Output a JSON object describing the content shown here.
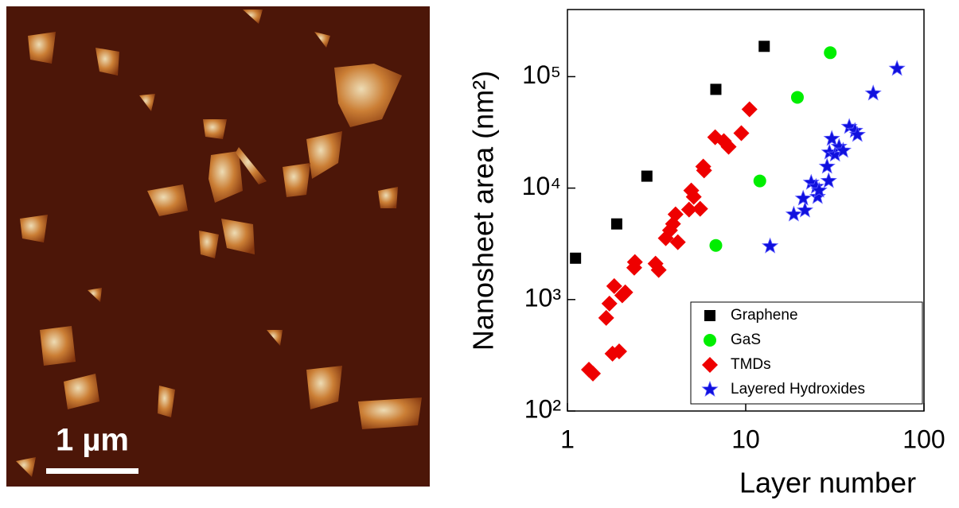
{
  "image": {
    "scale_bar_label": "1 µm"
  },
  "chart_data": {
    "type": "scatter",
    "xlabel": "Layer number",
    "ylabel": "Nanosheet area (nm²)",
    "xscale": "log",
    "yscale": "log",
    "xlim": [
      1,
      100
    ],
    "ylim": [
      100,
      400000
    ],
    "xticks": [
      1,
      10,
      100
    ],
    "yticks": [
      {
        "value": 100,
        "label": "10²"
      },
      {
        "value": 1000,
        "label": "10³"
      },
      {
        "value": 10000,
        "label": "10⁴"
      },
      {
        "value": 100000,
        "label": "10⁵"
      }
    ],
    "legend": "lower right",
    "series": [
      {
        "name": "Graphene",
        "color": "#000000",
        "marker": "square",
        "x": [
          1.11,
          1.89,
          2.79,
          6.8,
          12.7
        ],
        "values": [
          2350,
          4770,
          12800,
          76900,
          187000
        ]
      },
      {
        "name": "GaS",
        "color": "#00ee00",
        "marker": "circle",
        "x": [
          6.8,
          12.0,
          19.5,
          29.8
        ],
        "values": [
          3060,
          11600,
          65200,
          164000
        ]
      },
      {
        "name": "TMDs",
        "color": "#ee0000",
        "marker": "diamond",
        "x": [
          1.32,
          1.39,
          1.79,
          1.95,
          1.65,
          1.72,
          1.83,
          2.03,
          2.11,
          2.37,
          2.39,
          3.12,
          3.25,
          3.56,
          3.76,
          3.91,
          4.04,
          4.16,
          4.81,
          4.95,
          5.11,
          5.78,
          5.84,
          5.55,
          6.74,
          7.54,
          8.02,
          9.45,
          10.5
        ],
        "values": [
          235,
          217,
          327,
          343,
          685,
          921,
          1320,
          1090,
          1160,
          1930,
          2170,
          2100,
          1840,
          3550,
          4180,
          4770,
          5810,
          3270,
          6410,
          9520,
          8350,
          15600,
          14400,
          6520,
          28600,
          26400,
          23500,
          31100,
          50900
        ]
      },
      {
        "name": "Layered Hydroxides",
        "color": "#1010dd",
        "marker": "star",
        "x": [
          13.7,
          18.6,
          21.0,
          21.5,
          23.3,
          24.8,
          25.3,
          25.8,
          28.6,
          29.2,
          29.5,
          30.4,
          31.7,
          33.4,
          35.2,
          38.1,
          41.0,
          42.3,
          51.9,
          70.6
        ],
        "values": [
          3010,
          5810,
          8070,
          6310,
          11200,
          10300,
          8350,
          9520,
          15600,
          11600,
          20900,
          27700,
          20000,
          23500,
          21700,
          35500,
          32700,
          30100,
          70800,
          118000
        ]
      }
    ]
  }
}
